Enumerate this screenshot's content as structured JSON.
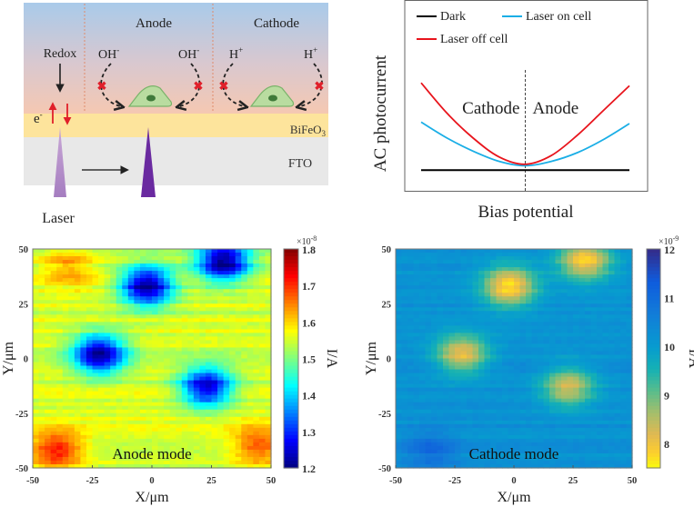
{
  "diagram": {
    "regions": {
      "anode": "Anode",
      "cathode": "Cathode"
    },
    "labels": {
      "redox": "Redox",
      "electron": "e",
      "electron_sup": "-",
      "oh_left": "OH",
      "oh_right": "OH",
      "oh_sup": "-",
      "h_left": "H",
      "h_right": "H",
      "h_sup": "+",
      "bifeo3": "BiFeO",
      "bifeo3_sub": "3",
      "fto": "FTO",
      "laser": "Laser"
    },
    "colors": {
      "solution_top": "#a8c8e8",
      "solution_bottom": "#f4c9b4",
      "bifeo3_layer": "#fde49c",
      "fto_layer": "#e6e6e6",
      "cell_fill": "#b9dca0",
      "cell_nucleus": "#3f7a3a",
      "laser_light": "#b48cc6",
      "laser_dark": "#6a2aa0",
      "block_mark": "#e0202a",
      "arrow_red": "#e0202a"
    }
  },
  "chart_data": [
    {
      "type": "line",
      "title": "",
      "xlabel": "Bias potential",
      "ylabel": "AC photocurrent",
      "x_range": [
        -1,
        1
      ],
      "y_range": [
        0,
        1
      ],
      "grid": false,
      "legend_position": "top-left",
      "region_labels": [
        "Cathode",
        "Anode"
      ],
      "divider_x": 0,
      "x": [
        -1,
        -0.75,
        -0.5,
        -0.25,
        0,
        0.25,
        0.5,
        0.75,
        1
      ],
      "series": [
        {
          "name": "Dark",
          "color": "#000000",
          "values": [
            0.08,
            0.08,
            0.08,
            0.08,
            0.08,
            0.08,
            0.08,
            0.08,
            0.08
          ]
        },
        {
          "name": "Laser on cell",
          "color": "#1aaee6",
          "values": [
            0.41,
            0.3,
            0.21,
            0.14,
            0.11,
            0.14,
            0.2,
            0.29,
            0.4
          ]
        },
        {
          "name": "Laser off cell",
          "color": "#e8141c",
          "values": [
            0.68,
            0.47,
            0.3,
            0.17,
            0.12,
            0.18,
            0.32,
            0.49,
            0.66
          ]
        }
      ],
      "legend": [
        "Dark",
        "Laser on cell",
        "Laser off cell"
      ]
    },
    {
      "type": "heatmap",
      "title": "Anode mode",
      "xlabel": "X/μm",
      "ylabel": "Y/μm",
      "x_range": [
        -50,
        50
      ],
      "y_range": [
        -50,
        50
      ],
      "x_ticks": [
        "-50",
        "-25",
        "0",
        "25",
        "50"
      ],
      "y_ticks": [
        "50",
        "25",
        "0",
        "-25",
        "-50"
      ],
      "colormap": "jet",
      "colorbar": {
        "label": "I/A",
        "multiplier": "×10",
        "exponent": "-8",
        "range": [
          1.2,
          1.8
        ],
        "ticks": [
          "1.8",
          "1.7",
          "1.6",
          "1.5",
          "1.4",
          "1.3",
          "1.2"
        ]
      },
      "background_value": 1.55,
      "features": [
        {
          "name": "cell-1",
          "x": -2,
          "y": 33,
          "value": 1.2
        },
        {
          "name": "cell-2",
          "x": 30,
          "y": 44,
          "value": 1.2
        },
        {
          "name": "cell-3",
          "x": -22,
          "y": 2,
          "value": 1.22
        },
        {
          "name": "cell-4",
          "x": 23,
          "y": -13,
          "value": 1.24
        },
        {
          "name": "hot-bottom-left",
          "x": -40,
          "y": -42,
          "value": 1.72
        },
        {
          "name": "hot-bottom-right",
          "x": 45,
          "y": -40,
          "value": 1.68
        },
        {
          "name": "hot-top-left",
          "x": -35,
          "y": 42,
          "value": 1.63
        }
      ]
    },
    {
      "type": "heatmap",
      "title": "Cathode mode",
      "xlabel": "X/μm",
      "ylabel": "Y/μm",
      "x_range": [
        -50,
        50
      ],
      "y_range": [
        -50,
        50
      ],
      "x_ticks": [
        "-50",
        "-25",
        "0",
        "25",
        "50"
      ],
      "y_ticks": [
        "50",
        "25",
        "0",
        "-25",
        "-50"
      ],
      "colormap": "parula-reversed",
      "colorbar": {
        "label": "I/A",
        "multiplier": "×10",
        "exponent": "-9",
        "range": [
          7.5,
          12
        ],
        "ticks": [
          "12",
          "11",
          "10",
          "9",
          "8"
        ]
      },
      "background_value": 10.2,
      "features": [
        {
          "name": "cell-1",
          "x": -2,
          "y": 33,
          "value": 7.7
        },
        {
          "name": "cell-2",
          "x": 30,
          "y": 45,
          "value": 7.8
        },
        {
          "name": "cell-3",
          "x": -22,
          "y": 2,
          "value": 8.1
        },
        {
          "name": "cell-4",
          "x": 23,
          "y": -13,
          "value": 8.3
        },
        {
          "name": "low-bottom-left",
          "x": -35,
          "y": -42,
          "value": 11.0
        }
      ]
    }
  ]
}
